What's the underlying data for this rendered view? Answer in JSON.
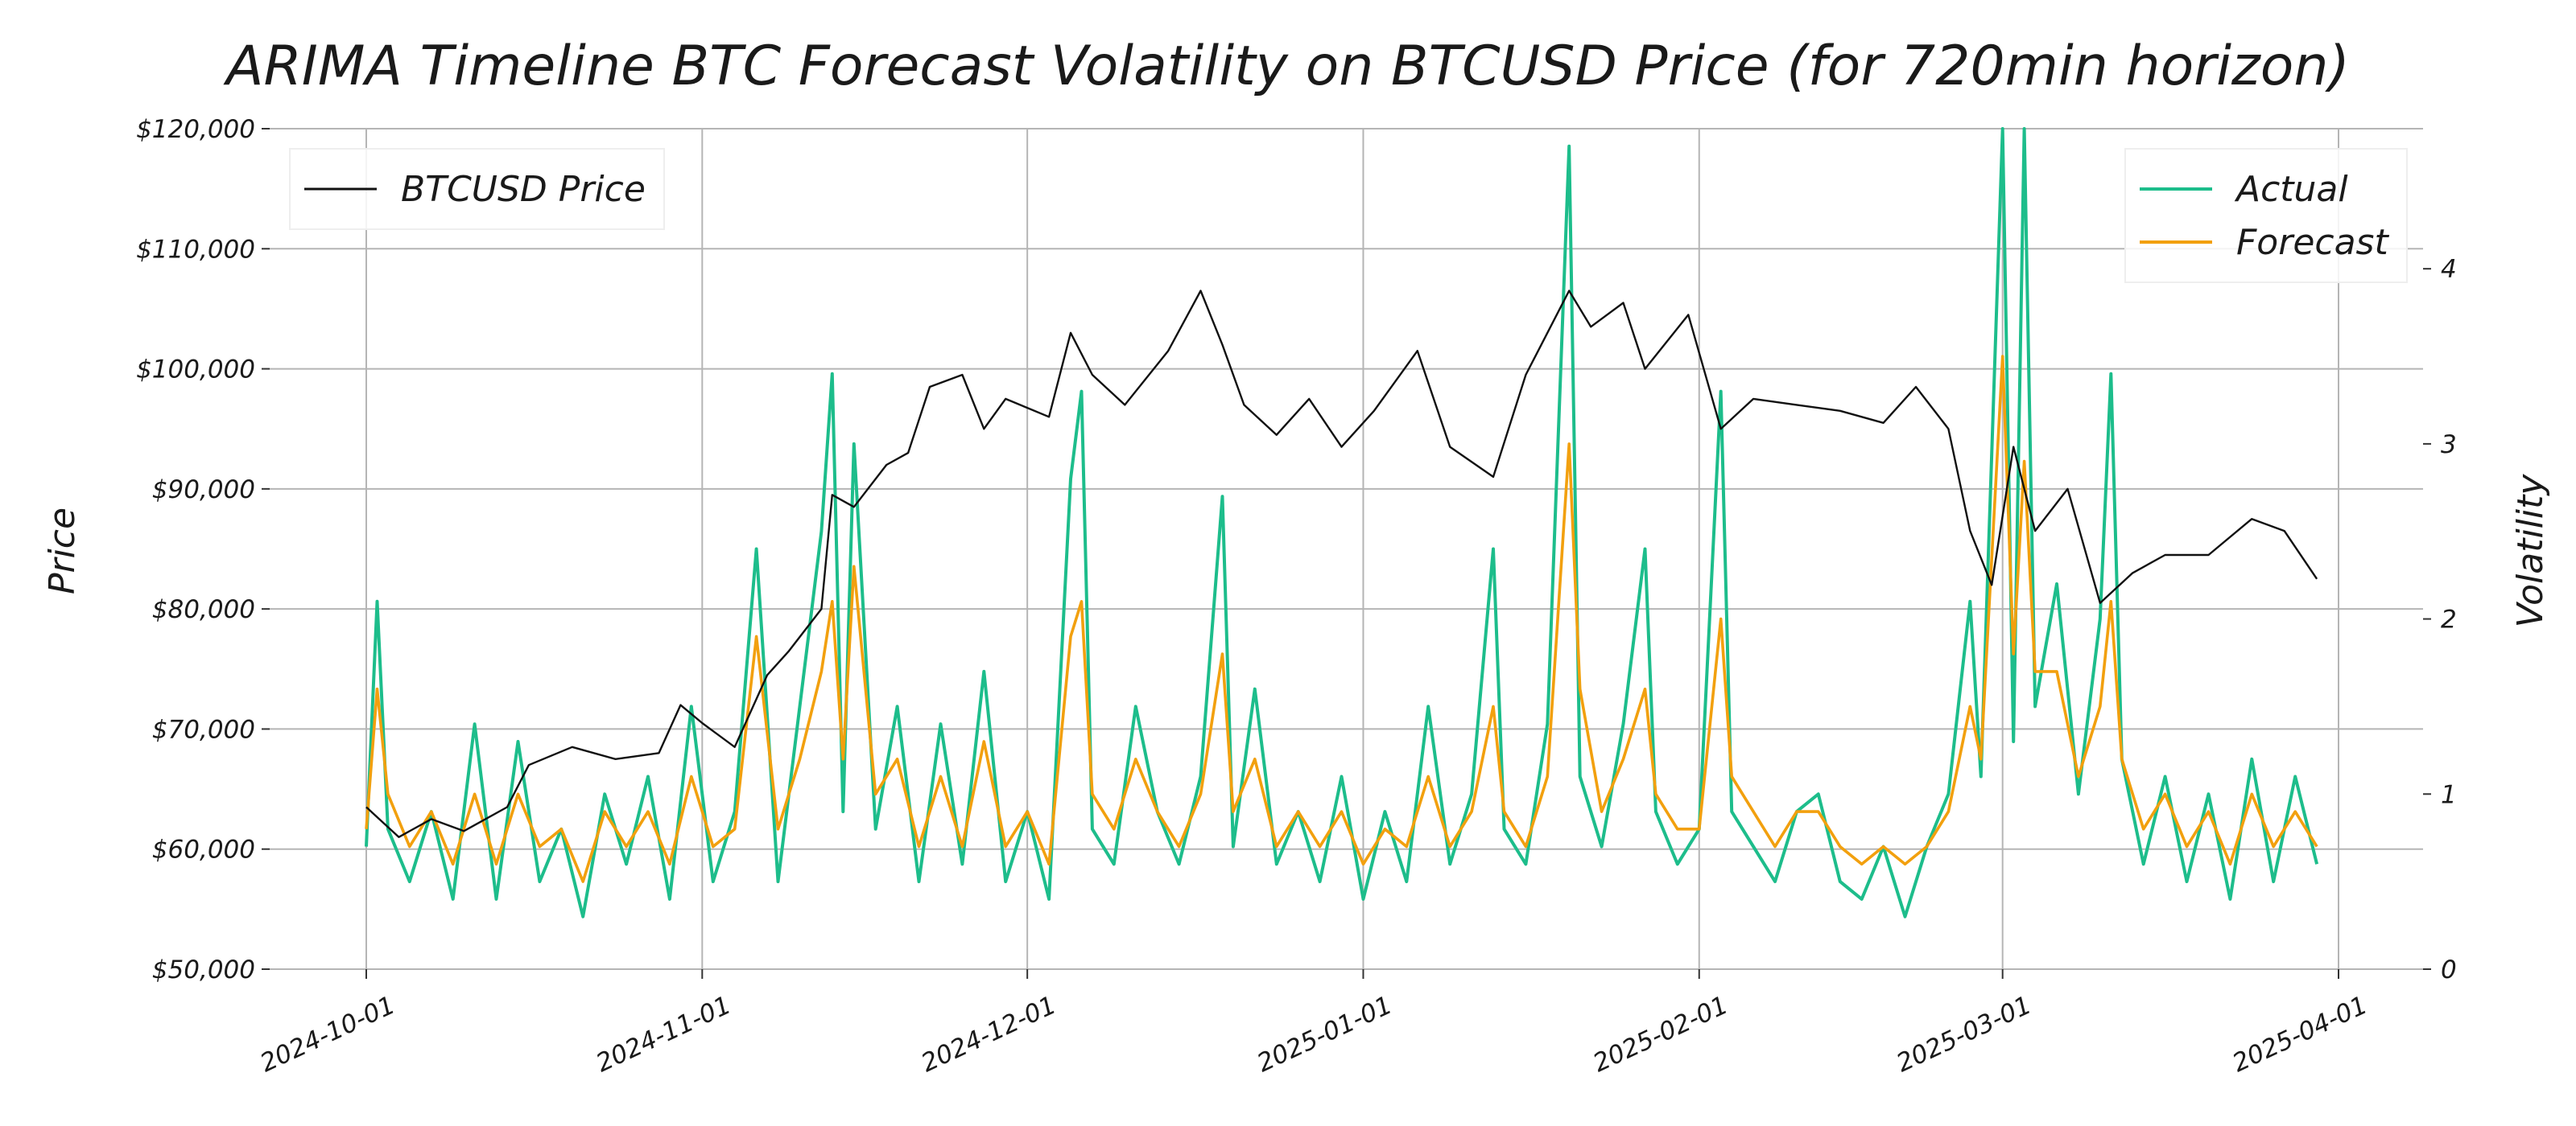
{
  "chart_data": {
    "type": "line",
    "title": "ARIMA Timeline BTC Forecast Volatility on BTCUSD Price (for 720min horizon)",
    "xlabel": "",
    "ylabel_left": "Price",
    "ylabel_right": "Volatility",
    "x_ticks": [
      "2024-10-01",
      "2024-11-01",
      "2024-12-01",
      "2025-01-01",
      "2025-02-01",
      "2025-03-01",
      "2025-04-01"
    ],
    "xlim": [
      "2024-10-01",
      "2025-04-01"
    ],
    "ylim_left": [
      50000,
      120000
    ],
    "y_ticks_left": [
      "$50,000",
      "$60,000",
      "$70,000",
      "$80,000",
      "$90,000",
      "$100,000",
      "$110,000",
      "$120,000"
    ],
    "y_tick_values_left": [
      50000,
      60000,
      70000,
      80000,
      90000,
      100000,
      110000,
      120000
    ],
    "ylim_right": [
      0,
      4.8
    ],
    "y_ticks_right": [
      "0",
      "1",
      "2",
      "3",
      "4"
    ],
    "y_tick_values_right": [
      0,
      1,
      2,
      3,
      4
    ],
    "grid": true,
    "legend_left": {
      "placement": "top-left",
      "entries": [
        "BTCUSD Price"
      ]
    },
    "legend_right": {
      "placement": "top-right",
      "entries": [
        "Actual",
        "Forecast"
      ]
    },
    "series": [
      {
        "name": "BTCUSD Price",
        "axis": "left",
        "color": "#111111",
        "points": [
          [
            "2024-10-01",
            63500
          ],
          [
            "2024-10-04",
            61000
          ],
          [
            "2024-10-07",
            62500
          ],
          [
            "2024-10-10",
            61500
          ],
          [
            "2024-10-14",
            63500
          ],
          [
            "2024-10-16",
            67000
          ],
          [
            "2024-10-20",
            68500
          ],
          [
            "2024-10-24",
            67500
          ],
          [
            "2024-10-28",
            68000
          ],
          [
            "2024-10-30",
            72000
          ],
          [
            "2024-11-01",
            70500
          ],
          [
            "2024-11-04",
            68500
          ],
          [
            "2024-11-07",
            74500
          ],
          [
            "2024-11-09",
            76500
          ],
          [
            "2024-11-12",
            80000
          ],
          [
            "2024-11-13",
            89500
          ],
          [
            "2024-11-15",
            88500
          ],
          [
            "2024-11-18",
            92000
          ],
          [
            "2024-11-20",
            93000
          ],
          [
            "2024-11-22",
            98500
          ],
          [
            "2024-11-25",
            99500
          ],
          [
            "2024-11-27",
            95000
          ],
          [
            "2024-11-29",
            97500
          ],
          [
            "2024-12-03",
            96000
          ],
          [
            "2024-12-05",
            103000
          ],
          [
            "2024-12-07",
            99500
          ],
          [
            "2024-12-10",
            97000
          ],
          [
            "2024-12-14",
            101500
          ],
          [
            "2024-12-17",
            106500
          ],
          [
            "2024-12-19",
            102000
          ],
          [
            "2024-12-21",
            97000
          ],
          [
            "2024-12-24",
            94500
          ],
          [
            "2024-12-27",
            97500
          ],
          [
            "2024-12-30",
            93500
          ],
          [
            "2025-01-02",
            96500
          ],
          [
            "2025-01-06",
            101500
          ],
          [
            "2025-01-09",
            93500
          ],
          [
            "2025-01-13",
            91000
          ],
          [
            "2025-01-16",
            99500
          ],
          [
            "2025-01-20",
            106500
          ],
          [
            "2025-01-22",
            103500
          ],
          [
            "2025-01-25",
            105500
          ],
          [
            "2025-01-27",
            100000
          ],
          [
            "2025-01-31",
            104500
          ],
          [
            "2025-02-03",
            95000
          ],
          [
            "2025-02-06",
            97500
          ],
          [
            "2025-02-10",
            97000
          ],
          [
            "2025-02-14",
            96500
          ],
          [
            "2025-02-18",
            95500
          ],
          [
            "2025-02-21",
            98500
          ],
          [
            "2025-02-24",
            95000
          ],
          [
            "2025-02-26",
            86500
          ],
          [
            "2025-02-28",
            82000
          ],
          [
            "2025-03-02",
            93500
          ],
          [
            "2025-03-04",
            86500
          ],
          [
            "2025-03-07",
            90000
          ],
          [
            "2025-03-10",
            80500
          ],
          [
            "2025-03-13",
            83000
          ],
          [
            "2025-03-16",
            84500
          ],
          [
            "2025-03-20",
            84500
          ],
          [
            "2025-03-24",
            87500
          ],
          [
            "2025-03-27",
            86500
          ],
          [
            "2025-03-30",
            82500
          ]
        ]
      },
      {
        "name": "Actual",
        "axis": "right",
        "color": "#1dbd8b",
        "points": [
          [
            "2024-10-01",
            0.7
          ],
          [
            "2024-10-02",
            2.1
          ],
          [
            "2024-10-03",
            0.8
          ],
          [
            "2024-10-05",
            0.5
          ],
          [
            "2024-10-07",
            0.9
          ],
          [
            "2024-10-09",
            0.4
          ],
          [
            "2024-10-11",
            1.4
          ],
          [
            "2024-10-13",
            0.4
          ],
          [
            "2024-10-15",
            1.3
          ],
          [
            "2024-10-17",
            0.5
          ],
          [
            "2024-10-19",
            0.8
          ],
          [
            "2024-10-21",
            0.3
          ],
          [
            "2024-10-23",
            1.0
          ],
          [
            "2024-10-25",
            0.6
          ],
          [
            "2024-10-27",
            1.1
          ],
          [
            "2024-10-29",
            0.4
          ],
          [
            "2024-10-31",
            1.5
          ],
          [
            "2024-11-02",
            0.5
          ],
          [
            "2024-11-04",
            0.9
          ],
          [
            "2024-11-06",
            2.4
          ],
          [
            "2024-11-08",
            0.5
          ],
          [
            "2024-11-10",
            1.5
          ],
          [
            "2024-11-12",
            2.5
          ],
          [
            "2024-11-13",
            3.4
          ],
          [
            "2024-11-14",
            0.9
          ],
          [
            "2024-11-15",
            3.0
          ],
          [
            "2024-11-17",
            0.8
          ],
          [
            "2024-11-19",
            1.5
          ],
          [
            "2024-11-21",
            0.5
          ],
          [
            "2024-11-23",
            1.4
          ],
          [
            "2024-11-25",
            0.6
          ],
          [
            "2024-11-27",
            1.7
          ],
          [
            "2024-11-29",
            0.5
          ],
          [
            "2024-12-01",
            0.9
          ],
          [
            "2024-12-03",
            0.4
          ],
          [
            "2024-12-05",
            2.8
          ],
          [
            "2024-12-06",
            3.3
          ],
          [
            "2024-12-07",
            0.8
          ],
          [
            "2024-12-09",
            0.6
          ],
          [
            "2024-12-11",
            1.5
          ],
          [
            "2024-12-13",
            0.9
          ],
          [
            "2024-12-15",
            0.6
          ],
          [
            "2024-12-17",
            1.1
          ],
          [
            "2024-12-19",
            2.7
          ],
          [
            "2024-12-20",
            0.7
          ],
          [
            "2024-12-22",
            1.6
          ],
          [
            "2024-12-24",
            0.6
          ],
          [
            "2024-12-26",
            0.9
          ],
          [
            "2024-12-28",
            0.5
          ],
          [
            "2024-12-30",
            1.1
          ],
          [
            "2025-01-01",
            0.4
          ],
          [
            "2025-01-03",
            0.9
          ],
          [
            "2025-01-05",
            0.5
          ],
          [
            "2025-01-07",
            1.5
          ],
          [
            "2025-01-09",
            0.6
          ],
          [
            "2025-01-11",
            1.0
          ],
          [
            "2025-01-13",
            2.4
          ],
          [
            "2025-01-14",
            0.8
          ],
          [
            "2025-01-16",
            0.6
          ],
          [
            "2025-01-18",
            1.4
          ],
          [
            "2025-01-20",
            4.7
          ],
          [
            "2025-01-21",
            1.1
          ],
          [
            "2025-01-23",
            0.7
          ],
          [
            "2025-01-25",
            1.4
          ],
          [
            "2025-01-27",
            2.4
          ],
          [
            "2025-01-28",
            0.9
          ],
          [
            "2025-01-30",
            0.6
          ],
          [
            "2025-02-01",
            0.8
          ],
          [
            "2025-02-03",
            3.3
          ],
          [
            "2025-02-04",
            0.9
          ],
          [
            "2025-02-06",
            0.7
          ],
          [
            "2025-02-08",
            0.5
          ],
          [
            "2025-02-10",
            0.9
          ],
          [
            "2025-02-12",
            1.0
          ],
          [
            "2025-02-14",
            0.5
          ],
          [
            "2025-02-16",
            0.4
          ],
          [
            "2025-02-18",
            0.7
          ],
          [
            "2025-02-20",
            0.3
          ],
          [
            "2025-02-22",
            0.7
          ],
          [
            "2025-02-24",
            1.0
          ],
          [
            "2025-02-26",
            2.1
          ],
          [
            "2025-02-27",
            1.1
          ],
          [
            "2025-03-01",
            4.8
          ],
          [
            "2025-03-02",
            1.3
          ],
          [
            "2025-03-03",
            4.8
          ],
          [
            "2025-03-04",
            1.5
          ],
          [
            "2025-03-06",
            2.2
          ],
          [
            "2025-03-08",
            1.0
          ],
          [
            "2025-03-10",
            2.0
          ],
          [
            "2025-03-11",
            3.4
          ],
          [
            "2025-03-12",
            1.2
          ],
          [
            "2025-03-14",
            0.6
          ],
          [
            "2025-03-16",
            1.1
          ],
          [
            "2025-03-18",
            0.5
          ],
          [
            "2025-03-20",
            1.0
          ],
          [
            "2025-03-22",
            0.4
          ],
          [
            "2025-03-24",
            1.2
          ],
          [
            "2025-03-26",
            0.5
          ],
          [
            "2025-03-28",
            1.1
          ],
          [
            "2025-03-30",
            0.6
          ]
        ]
      },
      {
        "name": "Forecast",
        "axis": "right",
        "color": "#f2a00e",
        "points": [
          [
            "2024-10-01",
            0.8
          ],
          [
            "2024-10-02",
            1.6
          ],
          [
            "2024-10-03",
            1.0
          ],
          [
            "2024-10-05",
            0.7
          ],
          [
            "2024-10-07",
            0.9
          ],
          [
            "2024-10-09",
            0.6
          ],
          [
            "2024-10-11",
            1.0
          ],
          [
            "2024-10-13",
            0.6
          ],
          [
            "2024-10-15",
            1.0
          ],
          [
            "2024-10-17",
            0.7
          ],
          [
            "2024-10-19",
            0.8
          ],
          [
            "2024-10-21",
            0.5
          ],
          [
            "2024-10-23",
            0.9
          ],
          [
            "2024-10-25",
            0.7
          ],
          [
            "2024-10-27",
            0.9
          ],
          [
            "2024-10-29",
            0.6
          ],
          [
            "2024-10-31",
            1.1
          ],
          [
            "2024-11-02",
            0.7
          ],
          [
            "2024-11-04",
            0.8
          ],
          [
            "2024-11-06",
            1.9
          ],
          [
            "2024-11-08",
            0.8
          ],
          [
            "2024-11-10",
            1.2
          ],
          [
            "2024-11-12",
            1.7
          ],
          [
            "2024-11-13",
            2.1
          ],
          [
            "2024-11-14",
            1.2
          ],
          [
            "2024-11-15",
            2.3
          ],
          [
            "2024-11-17",
            1.0
          ],
          [
            "2024-11-19",
            1.2
          ],
          [
            "2024-11-21",
            0.7
          ],
          [
            "2024-11-23",
            1.1
          ],
          [
            "2024-11-25",
            0.7
          ],
          [
            "2024-11-27",
            1.3
          ],
          [
            "2024-11-29",
            0.7
          ],
          [
            "2024-12-01",
            0.9
          ],
          [
            "2024-12-03",
            0.6
          ],
          [
            "2024-12-05",
            1.9
          ],
          [
            "2024-12-06",
            2.1
          ],
          [
            "2024-12-07",
            1.0
          ],
          [
            "2024-12-09",
            0.8
          ],
          [
            "2024-12-11",
            1.2
          ],
          [
            "2024-12-13",
            0.9
          ],
          [
            "2024-12-15",
            0.7
          ],
          [
            "2024-12-17",
            1.0
          ],
          [
            "2024-12-19",
            1.8
          ],
          [
            "2024-12-20",
            0.9
          ],
          [
            "2024-12-22",
            1.2
          ],
          [
            "2024-12-24",
            0.7
          ],
          [
            "2024-12-26",
            0.9
          ],
          [
            "2024-12-28",
            0.7
          ],
          [
            "2024-12-30",
            0.9
          ],
          [
            "2025-01-01",
            0.6
          ],
          [
            "2025-01-03",
            0.8
          ],
          [
            "2025-01-05",
            0.7
          ],
          [
            "2025-01-07",
            1.1
          ],
          [
            "2025-01-09",
            0.7
          ],
          [
            "2025-01-11",
            0.9
          ],
          [
            "2025-01-13",
            1.5
          ],
          [
            "2025-01-14",
            0.9
          ],
          [
            "2025-01-16",
            0.7
          ],
          [
            "2025-01-18",
            1.1
          ],
          [
            "2025-01-20",
            3.0
          ],
          [
            "2025-01-21",
            1.6
          ],
          [
            "2025-01-23",
            0.9
          ],
          [
            "2025-01-25",
            1.2
          ],
          [
            "2025-01-27",
            1.6
          ],
          [
            "2025-01-28",
            1.0
          ],
          [
            "2025-01-30",
            0.8
          ],
          [
            "2025-02-01",
            0.8
          ],
          [
            "2025-02-03",
            2.0
          ],
          [
            "2025-02-04",
            1.1
          ],
          [
            "2025-02-06",
            0.9
          ],
          [
            "2025-02-08",
            0.7
          ],
          [
            "2025-02-10",
            0.9
          ],
          [
            "2025-02-12",
            0.9
          ],
          [
            "2025-02-14",
            0.7
          ],
          [
            "2025-02-16",
            0.6
          ],
          [
            "2025-02-18",
            0.7
          ],
          [
            "2025-02-20",
            0.6
          ],
          [
            "2025-02-22",
            0.7
          ],
          [
            "2025-02-24",
            0.9
          ],
          [
            "2025-02-26",
            1.5
          ],
          [
            "2025-02-27",
            1.2
          ],
          [
            "2025-03-01",
            3.5
          ],
          [
            "2025-03-02",
            1.8
          ],
          [
            "2025-03-03",
            2.9
          ],
          [
            "2025-03-04",
            1.7
          ],
          [
            "2025-03-06",
            1.7
          ],
          [
            "2025-03-08",
            1.1
          ],
          [
            "2025-03-10",
            1.5
          ],
          [
            "2025-03-11",
            2.1
          ],
          [
            "2025-03-12",
            1.2
          ],
          [
            "2025-03-14",
            0.8
          ],
          [
            "2025-03-16",
            1.0
          ],
          [
            "2025-03-18",
            0.7
          ],
          [
            "2025-03-20",
            0.9
          ],
          [
            "2025-03-22",
            0.6
          ],
          [
            "2025-03-24",
            1.0
          ],
          [
            "2025-03-26",
            0.7
          ],
          [
            "2025-03-28",
            0.9
          ],
          [
            "2025-03-30",
            0.7
          ]
        ]
      }
    ]
  }
}
